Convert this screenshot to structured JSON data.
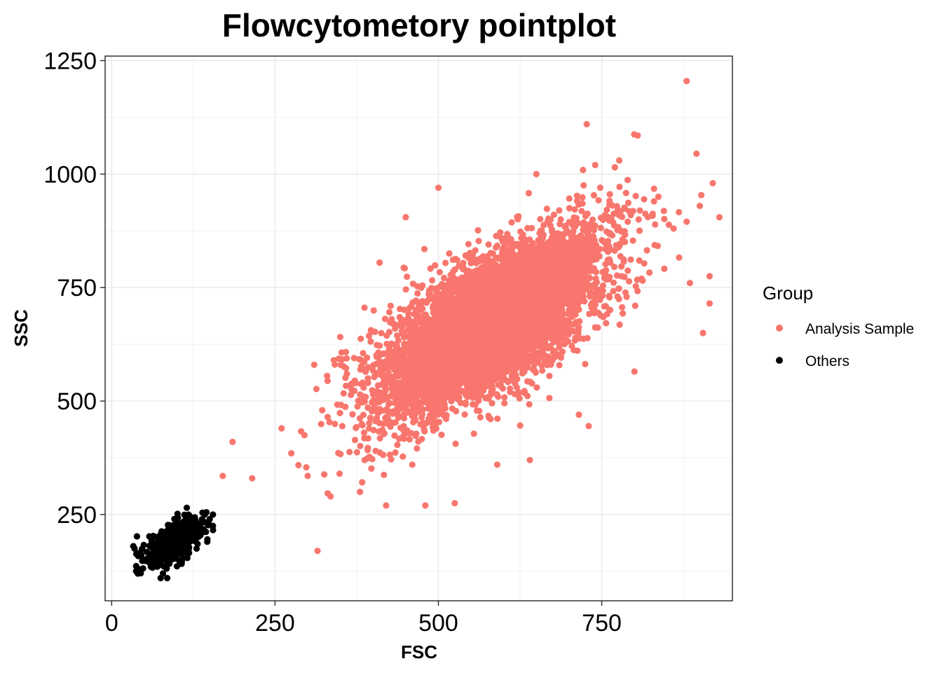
{
  "chart_data": {
    "type": "scatter",
    "title": "Flowcytometory pointplot",
    "xlabel": "FSC",
    "ylabel": "SSC",
    "xlim": [
      -10,
      950
    ],
    "ylim": [
      60,
      1260
    ],
    "xticks": [
      0,
      250,
      500,
      750
    ],
    "xtick_labels": [
      "0",
      "250",
      "500",
      "750"
    ],
    "yticks": [
      250,
      500,
      750,
      1000,
      1250
    ],
    "ytick_labels": [
      "250",
      "500",
      "750",
      "1000",
      "1250"
    ],
    "grid": true,
    "legend": {
      "title": "Group",
      "position": "right",
      "entries": [
        "Analysis Sample",
        "Others"
      ]
    },
    "series": [
      {
        "name": "Analysis Sample",
        "color": "#F8766D",
        "distribution": {
          "n": 6000,
          "mean": [
            580,
            670
          ],
          "sd": [
            85,
            100
          ],
          "corr": 0.7
        },
        "points": [
          [
            880,
            1205
          ],
          [
            727,
            1110
          ],
          [
            930,
            905
          ],
          [
            920,
            980
          ],
          [
            905,
            650
          ],
          [
            915,
            775
          ],
          [
            420,
            270
          ],
          [
            480,
            270
          ],
          [
            525,
            275
          ],
          [
            315,
            170
          ],
          [
            185,
            410
          ],
          [
            170,
            335
          ],
          [
            215,
            330
          ],
          [
            335,
            290
          ],
          [
            260,
            440
          ],
          [
            275,
            385
          ],
          [
            295,
            425
          ],
          [
            310,
            580
          ],
          [
            500,
            970
          ],
          [
            450,
            905
          ],
          [
            410,
            805
          ],
          [
            730,
            445
          ],
          [
            715,
            470
          ],
          [
            800,
            565
          ],
          [
            590,
            360
          ],
          [
            640,
            370
          ],
          [
            300,
            335
          ],
          [
            895,
            1045
          ],
          [
            885,
            760
          ],
          [
            880,
            895
          ],
          [
            805,
            1085
          ],
          [
            770,
            1015
          ],
          [
            830,
            940
          ],
          [
            860,
            880
          ],
          [
            740,
            1020
          ],
          [
            650,
            1000
          ],
          [
            380,
            300
          ],
          [
            360,
            560
          ],
          [
            340,
            590
          ],
          [
            460,
            360
          ],
          [
            900,
            930
          ],
          [
            915,
            715
          ]
        ]
      },
      {
        "name": "Others",
        "color": "#000000",
        "distribution": {
          "n": 600,
          "mean": [
            95,
            190
          ],
          "sd": [
            20,
            25
          ],
          "corr": 0.6
        },
        "points": [
          [
            35,
            175
          ],
          [
            40,
            120
          ],
          [
            45,
            160
          ],
          [
            75,
            110
          ],
          [
            85,
            110
          ],
          [
            115,
            265
          ],
          [
            145,
            255
          ],
          [
            155,
            250
          ],
          [
            155,
            225
          ],
          [
            150,
            240
          ],
          [
            60,
            135
          ],
          [
            130,
            175
          ]
        ]
      }
    ]
  }
}
